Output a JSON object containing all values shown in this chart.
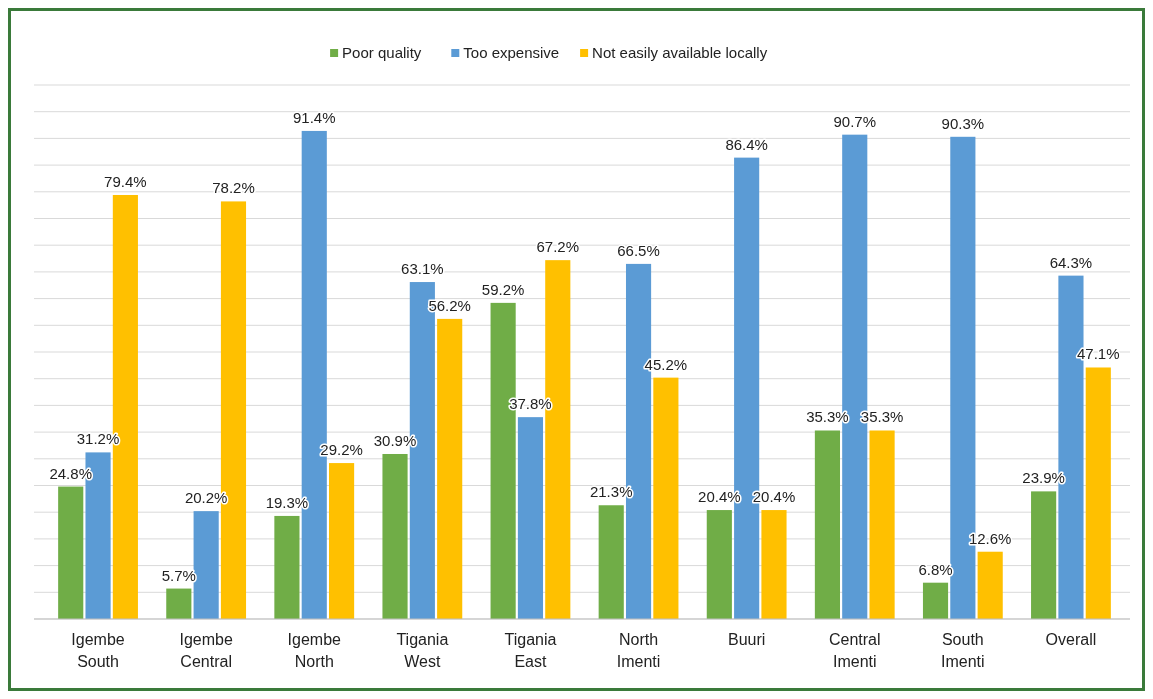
{
  "chart_data": {
    "type": "bar",
    "categories": [
      "Igembe South",
      "Igembe Central",
      "Igembe North",
      "Tigania West",
      "Tigania East",
      "North Imenti",
      "Buuri",
      "Central Imenti",
      "South Imenti",
      "Overall"
    ],
    "series": [
      {
        "name": "Poor quality",
        "color": "#70ad47",
        "values": [
          24.8,
          5.7,
          19.3,
          30.9,
          59.2,
          21.3,
          20.4,
          35.3,
          6.8,
          23.9
        ],
        "value_labels": [
          "24.8%",
          "5.7%",
          "19.3%",
          "30.9%",
          "59.2%",
          "21.3%",
          "20.4%",
          "35.3%",
          "6.8%",
          "23.9%"
        ]
      },
      {
        "name": "Too expensive",
        "color": "#5b9bd5",
        "values": [
          31.2,
          20.2,
          91.4,
          63.1,
          37.8,
          66.5,
          86.4,
          90.7,
          90.3,
          64.3
        ],
        "value_labels": [
          "31.2%",
          "20.2%",
          "91.4%",
          "63.1%",
          "37.8%",
          "66.5%",
          "86.4%",
          "90.7%",
          "90.3%",
          "64.3%"
        ]
      },
      {
        "name": "Not easily available locally",
        "color": "#ffc000",
        "values": [
          79.4,
          78.2,
          29.2,
          56.2,
          67.2,
          45.2,
          20.4,
          35.3,
          12.6,
          47.1
        ],
        "value_labels": [
          "79.4%",
          "78.2%",
          "29.2%",
          "56.2%",
          "67.2%",
          "45.2%",
          "20.4%",
          "35.3%",
          "12.6%",
          "47.1%"
        ]
      }
    ],
    "ylim": [
      0,
      100
    ],
    "yticks": [
      {
        "value": 0,
        "label": null
      },
      {
        "value": 5,
        "label": null
      },
      {
        "value": 10,
        "label": null
      },
      {
        "value": 15,
        "label": null
      },
      {
        "value": 20,
        "label": null
      },
      {
        "value": 25,
        "label": null
      },
      {
        "value": 30,
        "label": null
      },
      {
        "value": 35,
        "label": null
      },
      {
        "value": 40,
        "label": null
      },
      {
        "value": 45,
        "label": null
      },
      {
        "value": 50,
        "label": null
      },
      {
        "value": 55,
        "label": null
      },
      {
        "value": 60,
        "label": null
      },
      {
        "value": 65,
        "label": null
      },
      {
        "value": 70,
        "label": null
      },
      {
        "value": 75,
        "label": null
      },
      {
        "value": 80,
        "label": null
      },
      {
        "value": 85,
        "label": null
      },
      {
        "value": 90,
        "label": null
      },
      {
        "value": 95,
        "label": null
      },
      {
        "value": 100,
        "label": null
      }
    ],
    "grid": "y",
    "legend": "top",
    "tick_labels": "x"
  }
}
